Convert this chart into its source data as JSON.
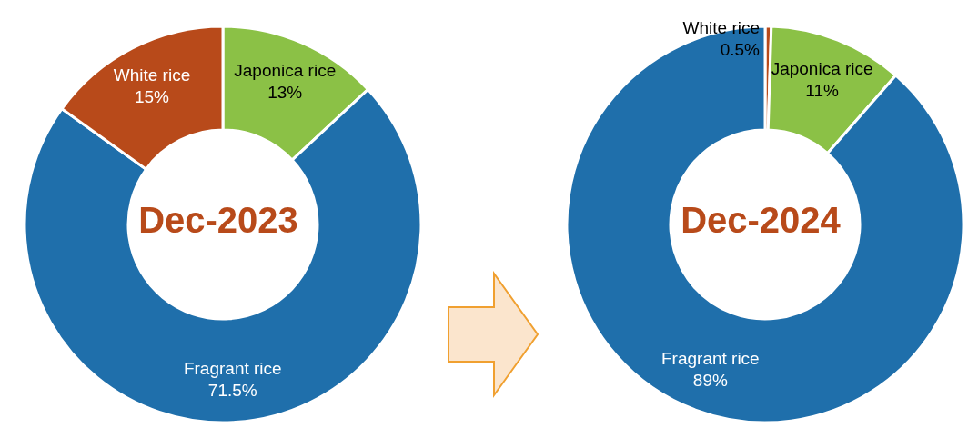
{
  "chart_data": [
    {
      "type": "donut",
      "title": "Dec-2023",
      "categories": [
        "Japonica rice",
        "Fragrant rice",
        "White rice"
      ],
      "values": [
        13,
        71.5,
        15
      ],
      "colors": [
        "#8bc146",
        "#1f6fab",
        "#b84a1a"
      ],
      "value_labels": [
        "13%",
        "71.5%",
        "15%"
      ]
    },
    {
      "type": "donut",
      "title": "Dec-2024",
      "categories": [
        "White rice",
        "Japonica rice",
        "Fragrant rice"
      ],
      "values": [
        0.5,
        11,
        89
      ],
      "colors": [
        "#b84a1a",
        "#8bc146",
        "#1f6fab"
      ],
      "value_labels": [
        "0.5%",
        "11%",
        "89%"
      ]
    }
  ]
}
